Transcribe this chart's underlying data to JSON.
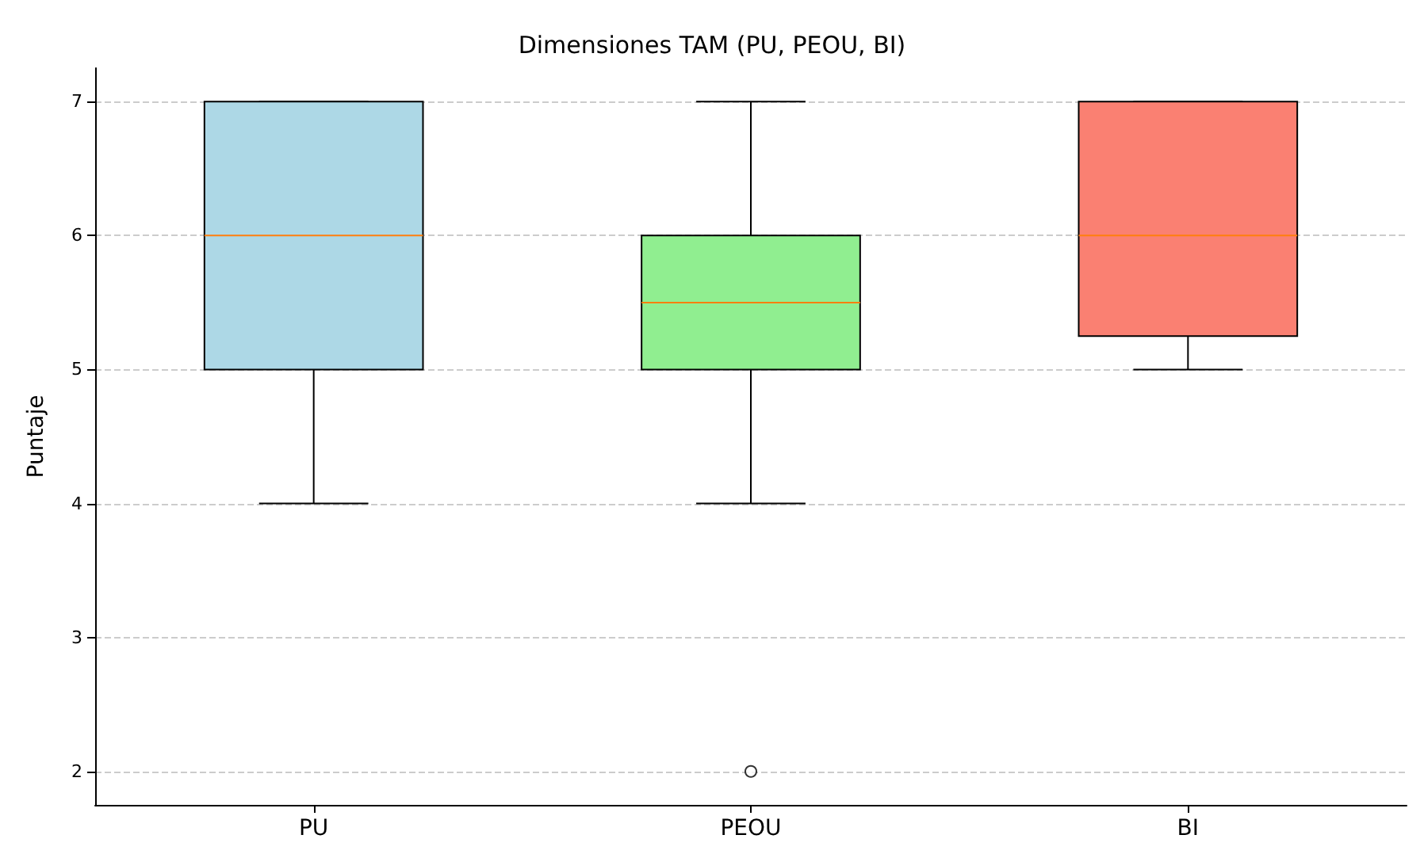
{
  "chart_data": {
    "type": "box",
    "title": "Dimensiones TAM (PU, PEOU, BI)",
    "ylabel": "Puntaje",
    "categories": [
      "PU",
      "PEOU",
      "BI"
    ],
    "boxes": [
      {
        "low": 4,
        "q1": 5,
        "median": 6,
        "q3": 7,
        "high": 7
      },
      {
        "low": 4,
        "q1": 5,
        "median": 5.5,
        "q3": 6,
        "high": 7,
        "outliers": [
          2
        ]
      },
      {
        "low": 5,
        "q1": 5.25,
        "median": 6,
        "q3": 7,
        "high": 7
      }
    ],
    "colors": [
      "#add8e6",
      "#90ee90",
      "#fa8072"
    ],
    "ylim": [
      1.75,
      7.25
    ],
    "yticks": [
      2,
      3,
      4,
      5,
      6,
      7
    ],
    "grid": "y"
  }
}
